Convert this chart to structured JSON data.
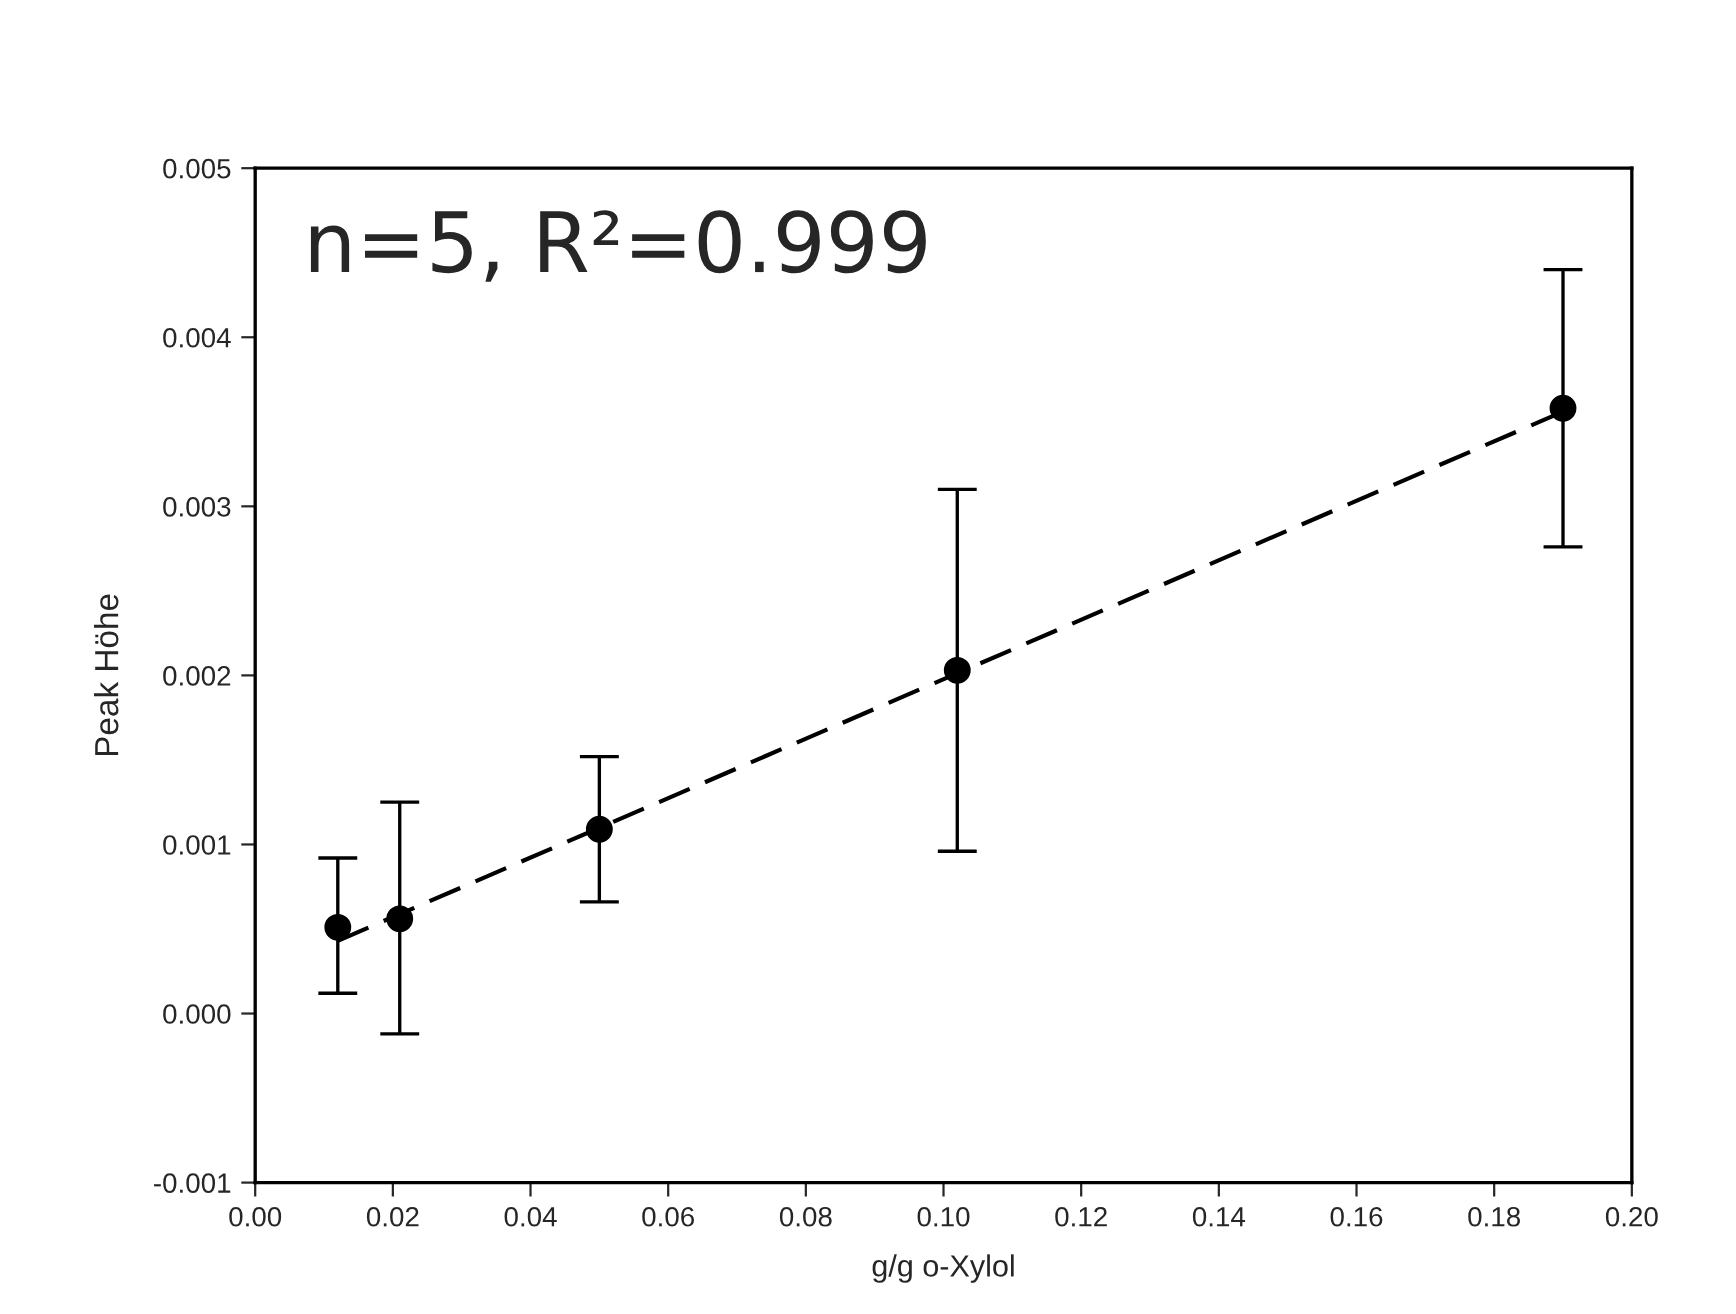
{
  "chart_data": {
    "type": "scatter",
    "xlabel": "g/g o-Xylol",
    "ylabel": "Peak Höhe",
    "annotations": [
      "n=5, R²=0.999"
    ],
    "series": [
      {
        "color": "#000000",
        "marker": "circle",
        "x": [
          0.012,
          0.021,
          0.05,
          0.102,
          0.19
        ],
        "values": [
          0.00051,
          0.00056,
          0.00109,
          0.00203,
          0.00358
        ],
        "errors": [
          [
            0.00012,
            0.00092
          ],
          [
            -0.00012,
            0.00125
          ],
          [
            0.00066,
            0.00152
          ],
          [
            0.00096,
            0.0031
          ],
          [
            0.00276,
            0.0044
          ]
        ]
      },
      {
        "type": "line",
        "color": "#000000",
        "line_style": "dashed",
        "x": [
          0.012,
          0.19
        ],
        "values": [
          0.00043,
          0.00356
        ]
      }
    ],
    "xlim": [
      0.0,
      0.2
    ],
    "ylim": [
      -0.001,
      0.005
    ],
    "xticks": [
      {
        "value": 0.0,
        "label": "0.00"
      },
      0.02,
      0.04,
      0.06,
      0.08,
      {
        "value": 0.1,
        "label": "0.10"
      },
      0.12,
      0.14,
      0.16,
      0.18,
      {
        "value": 0.2,
        "label": "0.20"
      }
    ],
    "yticks": [
      -0.001,
      {
        "value": 0.0,
        "label": "0.000"
      },
      0.001,
      0.002,
      0.003,
      0.004,
      0.005
    ],
    "grid": false
  }
}
